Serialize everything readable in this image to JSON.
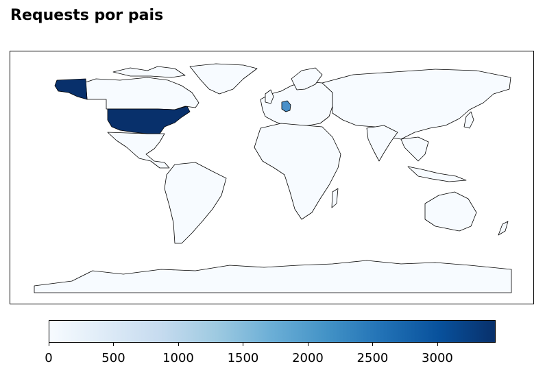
{
  "title": "Requests por pais",
  "colormap": {
    "name": "Blues",
    "low_color": "#f7fbff",
    "high_color": "#08306b",
    "min": 0,
    "max": 3450,
    "ticks": [
      "0",
      "500",
      "1000",
      "1500",
      "2000",
      "2500",
      "3000"
    ]
  },
  "chart_data": {
    "type": "choropleth",
    "title": "Requests por pais",
    "regions": [
      {
        "name": "United States",
        "value": 3450,
        "color": "#08306b"
      },
      {
        "name": "Germany",
        "value": 1850,
        "color": "#4a90c8"
      },
      {
        "name": "All other countries",
        "value": 0,
        "color": "#f7fbff"
      }
    ],
    "colorbar_range": [
      0,
      3450
    ]
  }
}
